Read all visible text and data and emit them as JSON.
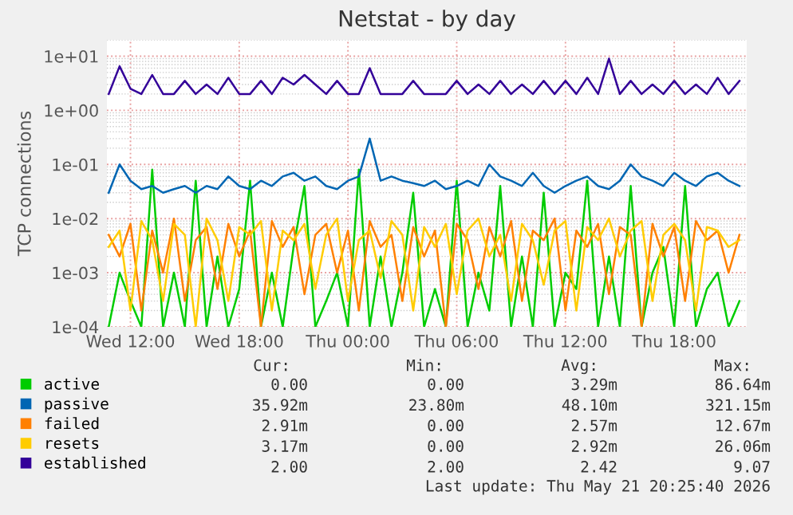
{
  "chart_data": {
    "type": "line",
    "title": "Netstat - by day",
    "ylabel": "TCP connections",
    "x": [
      "2026-05-20T10:48",
      "2026-05-20T11:24",
      "2026-05-20T12:00",
      "2026-05-20T12:36",
      "2026-05-20T13:12",
      "2026-05-20T13:48",
      "2026-05-20T14:24",
      "2026-05-20T15:00",
      "2026-05-20T15:36",
      "2026-05-20T16:12",
      "2026-05-20T16:48",
      "2026-05-20T17:24",
      "2026-05-20T18:00",
      "2026-05-20T18:36",
      "2026-05-20T19:12",
      "2026-05-20T19:48",
      "2026-05-20T20:24",
      "2026-05-20T21:00",
      "2026-05-20T21:36",
      "2026-05-20T22:12",
      "2026-05-20T22:48",
      "2026-05-20T23:24",
      "2026-05-21T00:00",
      "2026-05-21T00:36",
      "2026-05-21T01:12",
      "2026-05-21T01:48",
      "2026-05-21T02:24",
      "2026-05-21T03:00",
      "2026-05-21T03:36",
      "2026-05-21T04:12",
      "2026-05-21T04:48",
      "2026-05-21T05:24",
      "2026-05-21T06:00",
      "2026-05-21T06:36",
      "2026-05-21T07:12",
      "2026-05-21T07:48",
      "2026-05-21T08:24",
      "2026-05-21T09:00",
      "2026-05-21T09:36",
      "2026-05-21T10:12",
      "2026-05-21T10:48",
      "2026-05-21T11:24",
      "2026-05-21T12:00",
      "2026-05-21T12:36",
      "2026-05-21T13:12",
      "2026-05-21T13:48",
      "2026-05-21T14:24",
      "2026-05-21T15:00",
      "2026-05-21T15:36",
      "2026-05-21T16:12",
      "2026-05-21T16:48",
      "2026-05-21T17:24",
      "2026-05-21T18:00",
      "2026-05-21T18:36",
      "2026-05-21T19:12",
      "2026-05-21T19:48",
      "2026-05-21T20:24",
      "2026-05-21T21:00",
      "2026-05-21T21:36"
    ],
    "xlim": [
      "2026-05-20T10:42",
      "2026-05-21T22:00"
    ],
    "xticks": [
      {
        "value": "2026-05-20T12:00",
        "label": "Wed 12:00"
      },
      {
        "value": "2026-05-20T18:00",
        "label": "Wed 18:00"
      },
      {
        "value": "2026-05-21T00:00",
        "label": "Thu 00:00"
      },
      {
        "value": "2026-05-21T06:00",
        "label": "Thu 06:00"
      },
      {
        "value": "2026-05-21T12:00",
        "label": "Thu 12:00"
      },
      {
        "value": "2026-05-21T18:00",
        "label": "Thu 18:00"
      }
    ],
    "ylim": [
      0.0001,
      20
    ],
    "log": true,
    "yticks": [
      {
        "value": 0.0001,
        "label": "1e-04"
      },
      {
        "value": 0.001,
        "label": "1e-03"
      },
      {
        "value": 0.01,
        "label": "1e-02"
      },
      {
        "value": 0.1,
        "label": "1e-01"
      },
      {
        "value": 1,
        "label": "1e+00"
      },
      {
        "value": 10,
        "label": "1e+01"
      }
    ],
    "grid": true,
    "legend": "bottom",
    "marker": "none",
    "line_style": "solid",
    "series": [
      {
        "name": "active",
        "color": "#00cc00",
        "values": [
          0.0001,
          0.001,
          0.0003,
          0.0001,
          0.08,
          0.0001,
          0.001,
          0.0001,
          0.05,
          0.0001,
          0.002,
          0.0001,
          0.0005,
          0.05,
          0.0001,
          0.001,
          0.0001,
          0.003,
          0.04,
          0.0001,
          0.0003,
          0.001,
          0.0001,
          0.08,
          0.0001,
          0.002,
          0.0001,
          0.001,
          0.03,
          0.0001,
          0.0005,
          0.0001,
          0.05,
          0.0001,
          0.001,
          0.0002,
          0.04,
          0.0001,
          0.002,
          0.0001,
          0.03,
          0.0001,
          0.001,
          0.0005,
          0.05,
          0.0001,
          0.002,
          0.0001,
          0.04,
          0.0001,
          0.001,
          0.003,
          0.0001,
          0.04,
          0.0001,
          0.0005,
          0.001,
          0.0001,
          0.0003
        ]
      },
      {
        "name": "passive",
        "color": "#0066b3",
        "values": [
          0.03,
          0.1,
          0.05,
          0.035,
          0.04,
          0.03,
          0.035,
          0.04,
          0.03,
          0.04,
          0.035,
          0.06,
          0.04,
          0.035,
          0.05,
          0.04,
          0.06,
          0.07,
          0.05,
          0.06,
          0.04,
          0.035,
          0.05,
          0.06,
          0.3,
          0.05,
          0.06,
          0.05,
          0.045,
          0.04,
          0.05,
          0.035,
          0.04,
          0.05,
          0.04,
          0.1,
          0.06,
          0.05,
          0.04,
          0.07,
          0.04,
          0.03,
          0.04,
          0.05,
          0.06,
          0.04,
          0.035,
          0.05,
          0.1,
          0.06,
          0.05,
          0.04,
          0.07,
          0.05,
          0.04,
          0.06,
          0.07,
          0.05,
          0.04
        ]
      },
      {
        "name": "failed",
        "color": "#ff8000",
        "values": [
          0.005,
          0.002,
          0.008,
          0.0002,
          0.006,
          0.001,
          0.01,
          0.0003,
          0.004,
          0.007,
          0.0005,
          0.008,
          0.002,
          0.006,
          0.0001,
          0.009,
          0.003,
          0.007,
          0.0004,
          0.005,
          0.008,
          0.001,
          0.006,
          0.0002,
          0.009,
          0.003,
          0.005,
          0.0003,
          0.007,
          0.002,
          0.006,
          0.0001,
          0.008,
          0.004,
          0.0005,
          0.007,
          0.002,
          0.009,
          0.0003,
          0.006,
          0.004,
          0.01,
          0.0002,
          0.006,
          0.003,
          0.008,
          0.0004,
          0.007,
          0.005,
          0.0001,
          0.008,
          0.002,
          0.007,
          0.0003,
          0.009,
          0.004,
          0.006,
          0.001,
          0.005
        ]
      },
      {
        "name": "resets",
        "color": "#ffcc00",
        "values": [
          0.003,
          0.006,
          0.0002,
          0.009,
          0.004,
          0.0003,
          0.008,
          0.005,
          0.0001,
          0.01,
          0.004,
          0.0003,
          0.007,
          0.005,
          0.009,
          0.0002,
          0.006,
          0.004,
          0.008,
          0.0005,
          0.005,
          0.01,
          0.0003,
          0.004,
          0.006,
          0.0008,
          0.009,
          0.005,
          0.0002,
          0.007,
          0.003,
          0.008,
          0.0004,
          0.006,
          0.01,
          0.002,
          0.005,
          0.0003,
          0.008,
          0.004,
          0.0006,
          0.006,
          0.009,
          0.0002,
          0.007,
          0.004,
          0.01,
          0.002,
          0.006,
          0.009,
          0.0003,
          0.005,
          0.008,
          0.004,
          0.0002,
          0.007,
          0.006,
          0.003,
          0.004
        ]
      },
      {
        "name": "established",
        "color": "#330099",
        "values": [
          2,
          6.5,
          2.5,
          2,
          4.5,
          2,
          2,
          3.5,
          2,
          3,
          2,
          4,
          2,
          2,
          3.5,
          2,
          4,
          3,
          4.5,
          3,
          2,
          3.5,
          2,
          2,
          6,
          2,
          2,
          2,
          3.5,
          2,
          2,
          2,
          3.5,
          2,
          3,
          2,
          3.5,
          2,
          3,
          2,
          3.5,
          2,
          3.5,
          2,
          4,
          2,
          9,
          2,
          3.5,
          2,
          3,
          2,
          3.5,
          2,
          3,
          2,
          4,
          2,
          3.5
        ]
      }
    ],
    "annotations": [
      "Cur:",
      "Min:",
      "Avg:",
      "Max:",
      "0.00",
      "0.00",
      "3.29m",
      "86.64m",
      "35.92m",
      "23.80m",
      "48.10m",
      "321.15m",
      "2.91m",
      "0.00",
      "2.57m",
      "12.67m",
      "3.17m",
      "0.00",
      "2.92m",
      "26.06m",
      "2.00",
      "2.00",
      "2.42",
      "9.07",
      "Last update: Thu May 21 20:25:40 2026"
    ]
  }
}
